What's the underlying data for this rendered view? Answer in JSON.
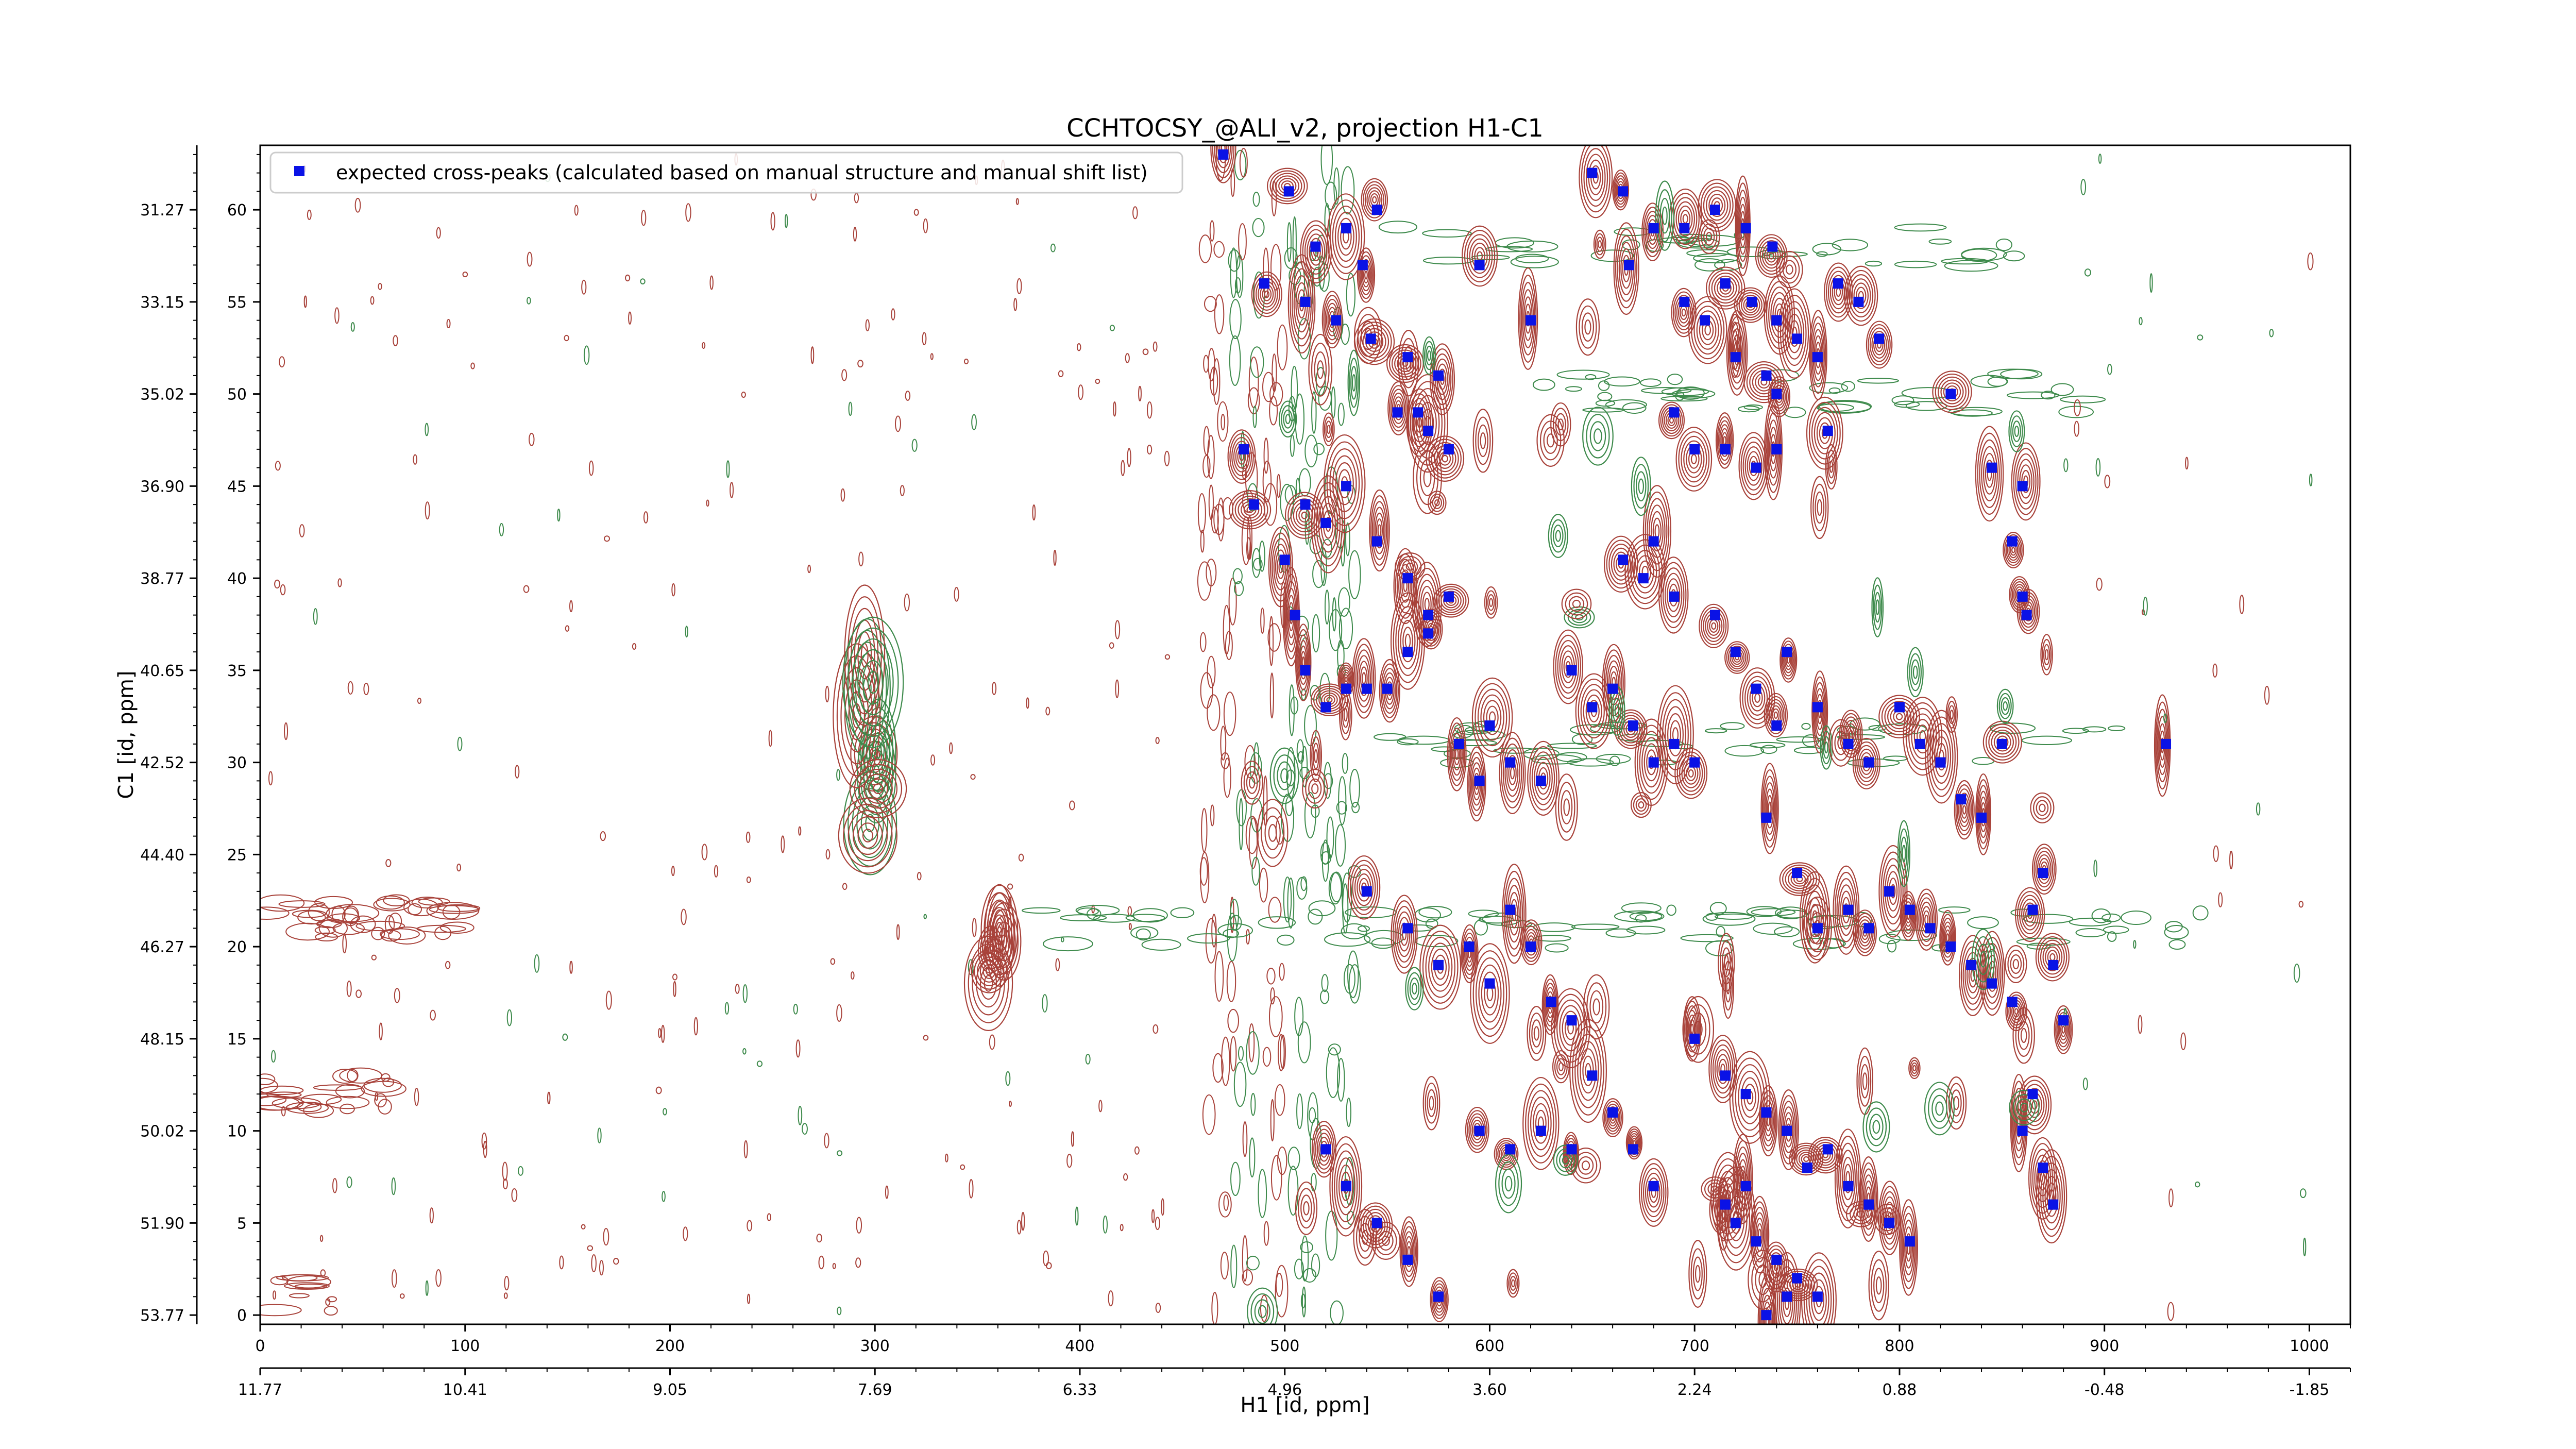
{
  "chart_data": {
    "type": "scatter",
    "title": "CCHTOCSY_@ALI_v2, projection H1-C1",
    "xlabel": "H1 [id, ppm]",
    "ylabel": "C1 [id, ppm]",
    "xlim": [
      0,
      1020
    ],
    "ylim": [
      -0.5,
      63.5
    ],
    "x_ticks_index": [
      "0",
      "100",
      "200",
      "300",
      "400",
      "500",
      "600",
      "700",
      "800",
      "900",
      "1000"
    ],
    "x_ticks_ppm": [
      "11.77",
      "10.41",
      "9.05",
      "7.69",
      "6.33",
      "4.96",
      "3.60",
      "2.24",
      "0.88",
      "-0.48",
      "-1.85"
    ],
    "y_ticks_index": [
      "0",
      "5",
      "10",
      "15",
      "20",
      "25",
      "30",
      "35",
      "40",
      "45",
      "50",
      "55",
      "60"
    ],
    "y_ticks_ppm": [
      "53.77",
      "51.90",
      "50.02",
      "48.15",
      "46.27",
      "44.40",
      "42.52",
      "40.65",
      "38.77",
      "36.90",
      "35.02",
      "33.15",
      "31.27"
    ],
    "legend": {
      "position": "top-left",
      "entries": [
        "expected cross-peaks (calculated based on manual structure and manual shift list)"
      ]
    },
    "colors": {
      "positive_contour": "#a8423a",
      "negative_contour": "#3d8a4b",
      "marker": "#0a12e6"
    },
    "series": [
      {
        "name": "expected cross-peaks (calculated based on manual structure and manual shift list)",
        "points": [
          [
            470,
            63
          ],
          [
            502,
            61
          ],
          [
            515,
            58
          ],
          [
            530,
            59
          ],
          [
            545,
            60
          ],
          [
            538,
            57
          ],
          [
            490,
            56
          ],
          [
            510,
            55
          ],
          [
            525,
            54
          ],
          [
            542,
            53
          ],
          [
            560,
            52
          ],
          [
            575,
            51
          ],
          [
            555,
            49
          ],
          [
            565,
            49
          ],
          [
            570,
            48
          ],
          [
            580,
            47
          ],
          [
            595,
            57
          ],
          [
            620,
            54
          ],
          [
            650,
            62
          ],
          [
            665,
            61
          ],
          [
            668,
            57
          ],
          [
            680,
            59
          ],
          [
            695,
            59
          ],
          [
            710,
            60
          ],
          [
            725,
            59
          ],
          [
            738,
            58
          ],
          [
            715,
            56
          ],
          [
            728,
            55
          ],
          [
            740,
            54
          ],
          [
            750,
            53
          ],
          [
            760,
            52
          ],
          [
            770,
            56
          ],
          [
            780,
            55
          ],
          [
            790,
            53
          ],
          [
            695,
            55
          ],
          [
            705,
            54
          ],
          [
            720,
            52
          ],
          [
            735,
            51
          ],
          [
            740,
            50
          ],
          [
            690,
            49
          ],
          [
            700,
            47
          ],
          [
            715,
            47
          ],
          [
            730,
            46
          ],
          [
            740,
            47
          ],
          [
            765,
            48
          ],
          [
            825,
            50
          ],
          [
            845,
            46
          ],
          [
            860,
            45
          ],
          [
            855,
            42
          ],
          [
            860,
            39
          ],
          [
            862,
            38
          ],
          [
            480,
            47
          ],
          [
            485,
            44
          ],
          [
            500,
            41
          ],
          [
            510,
            44
          ],
          [
            520,
            43
          ],
          [
            530,
            45
          ],
          [
            545,
            42
          ],
          [
            560,
            40
          ],
          [
            570,
            38
          ],
          [
            580,
            39
          ],
          [
            505,
            38
          ],
          [
            510,
            35
          ],
          [
            520,
            33
          ],
          [
            530,
            34
          ],
          [
            540,
            34
          ],
          [
            550,
            34
          ],
          [
            560,
            36
          ],
          [
            570,
            37
          ],
          [
            585,
            31
          ],
          [
            595,
            29
          ],
          [
            600,
            32
          ],
          [
            610,
            30
          ],
          [
            625,
            29
          ],
          [
            640,
            35
          ],
          [
            650,
            33
          ],
          [
            660,
            34
          ],
          [
            670,
            32
          ],
          [
            680,
            30
          ],
          [
            690,
            31
          ],
          [
            700,
            30
          ],
          [
            665,
            41
          ],
          [
            675,
            40
          ],
          [
            680,
            42
          ],
          [
            690,
            39
          ],
          [
            710,
            38
          ],
          [
            720,
            36
          ],
          [
            730,
            34
          ],
          [
            740,
            32
          ],
          [
            745,
            36
          ],
          [
            760,
            33
          ],
          [
            775,
            31
          ],
          [
            785,
            30
          ],
          [
            800,
            33
          ],
          [
            810,
            31
          ],
          [
            820,
            30
          ],
          [
            830,
            28
          ],
          [
            840,
            27
          ],
          [
            850,
            31
          ],
          [
            735,
            27
          ],
          [
            750,
            24
          ],
          [
            760,
            21
          ],
          [
            775,
            22
          ],
          [
            785,
            21
          ],
          [
            795,
            23
          ],
          [
            805,
            22
          ],
          [
            815,
            21
          ],
          [
            825,
            20
          ],
          [
            835,
            19
          ],
          [
            845,
            18
          ],
          [
            855,
            17
          ],
          [
            865,
            22
          ],
          [
            870,
            24
          ],
          [
            875,
            19
          ],
          [
            880,
            16
          ],
          [
            700,
            15
          ],
          [
            715,
            13
          ],
          [
            725,
            12
          ],
          [
            735,
            11
          ],
          [
            745,
            10
          ],
          [
            755,
            8
          ],
          [
            765,
            9
          ],
          [
            775,
            7
          ],
          [
            785,
            6
          ],
          [
            795,
            5
          ],
          [
            805,
            4
          ],
          [
            720,
            5
          ],
          [
            730,
            4
          ],
          [
            740,
            3
          ],
          [
            750,
            2
          ],
          [
            760,
            1
          ],
          [
            715,
            6
          ],
          [
            725,
            7
          ],
          [
            735,
            0
          ],
          [
            745,
            1
          ],
          [
            860,
            10
          ],
          [
            865,
            12
          ],
          [
            870,
            8
          ],
          [
            875,
            6
          ],
          [
            930,
            31
          ],
          [
            540,
            23
          ],
          [
            560,
            21
          ],
          [
            575,
            19
          ],
          [
            590,
            20
          ],
          [
            600,
            18
          ],
          [
            610,
            22
          ],
          [
            620,
            20
          ],
          [
            630,
            17
          ],
          [
            640,
            16
          ],
          [
            650,
            13
          ],
          [
            660,
            11
          ],
          [
            670,
            9
          ],
          [
            680,
            7
          ],
          [
            520,
            9
          ],
          [
            530,
            7
          ],
          [
            545,
            5
          ],
          [
            560,
            3
          ],
          [
            575,
            1
          ],
          [
            595,
            10
          ],
          [
            610,
            9
          ],
          [
            625,
            10
          ],
          [
            640,
            9
          ]
        ]
      }
    ]
  }
}
